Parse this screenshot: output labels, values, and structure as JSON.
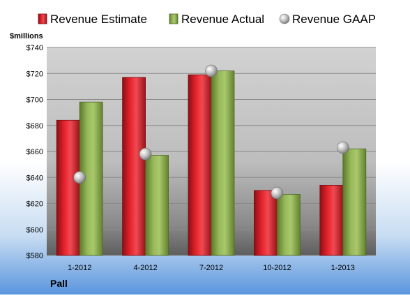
{
  "chart_data": {
    "type": "bar",
    "title": "",
    "ylabel": "$millions",
    "xlabel": "",
    "company_label": "Pall",
    "categories": [
      "1-2012",
      "4-2012",
      "7-2012",
      "10-2012",
      "1-2013"
    ],
    "series": [
      {
        "name": "Revenue Estimate",
        "kind": "bar",
        "values": [
          684,
          717,
          719,
          630,
          634
        ],
        "color": "#e0202a"
      },
      {
        "name": "Revenue Actual",
        "kind": "bar",
        "values": [
          698,
          657,
          722,
          627,
          662
        ],
        "color": "#8fb050"
      },
      {
        "name": "Revenue GAAP",
        "kind": "marker",
        "values": [
          640,
          658,
          722,
          628,
          663
        ],
        "color": "#c8c8c8"
      }
    ],
    "ylim": [
      580,
      740
    ],
    "yticks": [
      580,
      600,
      620,
      640,
      660,
      680,
      700,
      720,
      740
    ],
    "ytick_labels": [
      "$580",
      "$600",
      "$620",
      "$640",
      "$660",
      "$680",
      "$700",
      "$720",
      "$740"
    ],
    "grid": true,
    "legend_position": "top"
  }
}
